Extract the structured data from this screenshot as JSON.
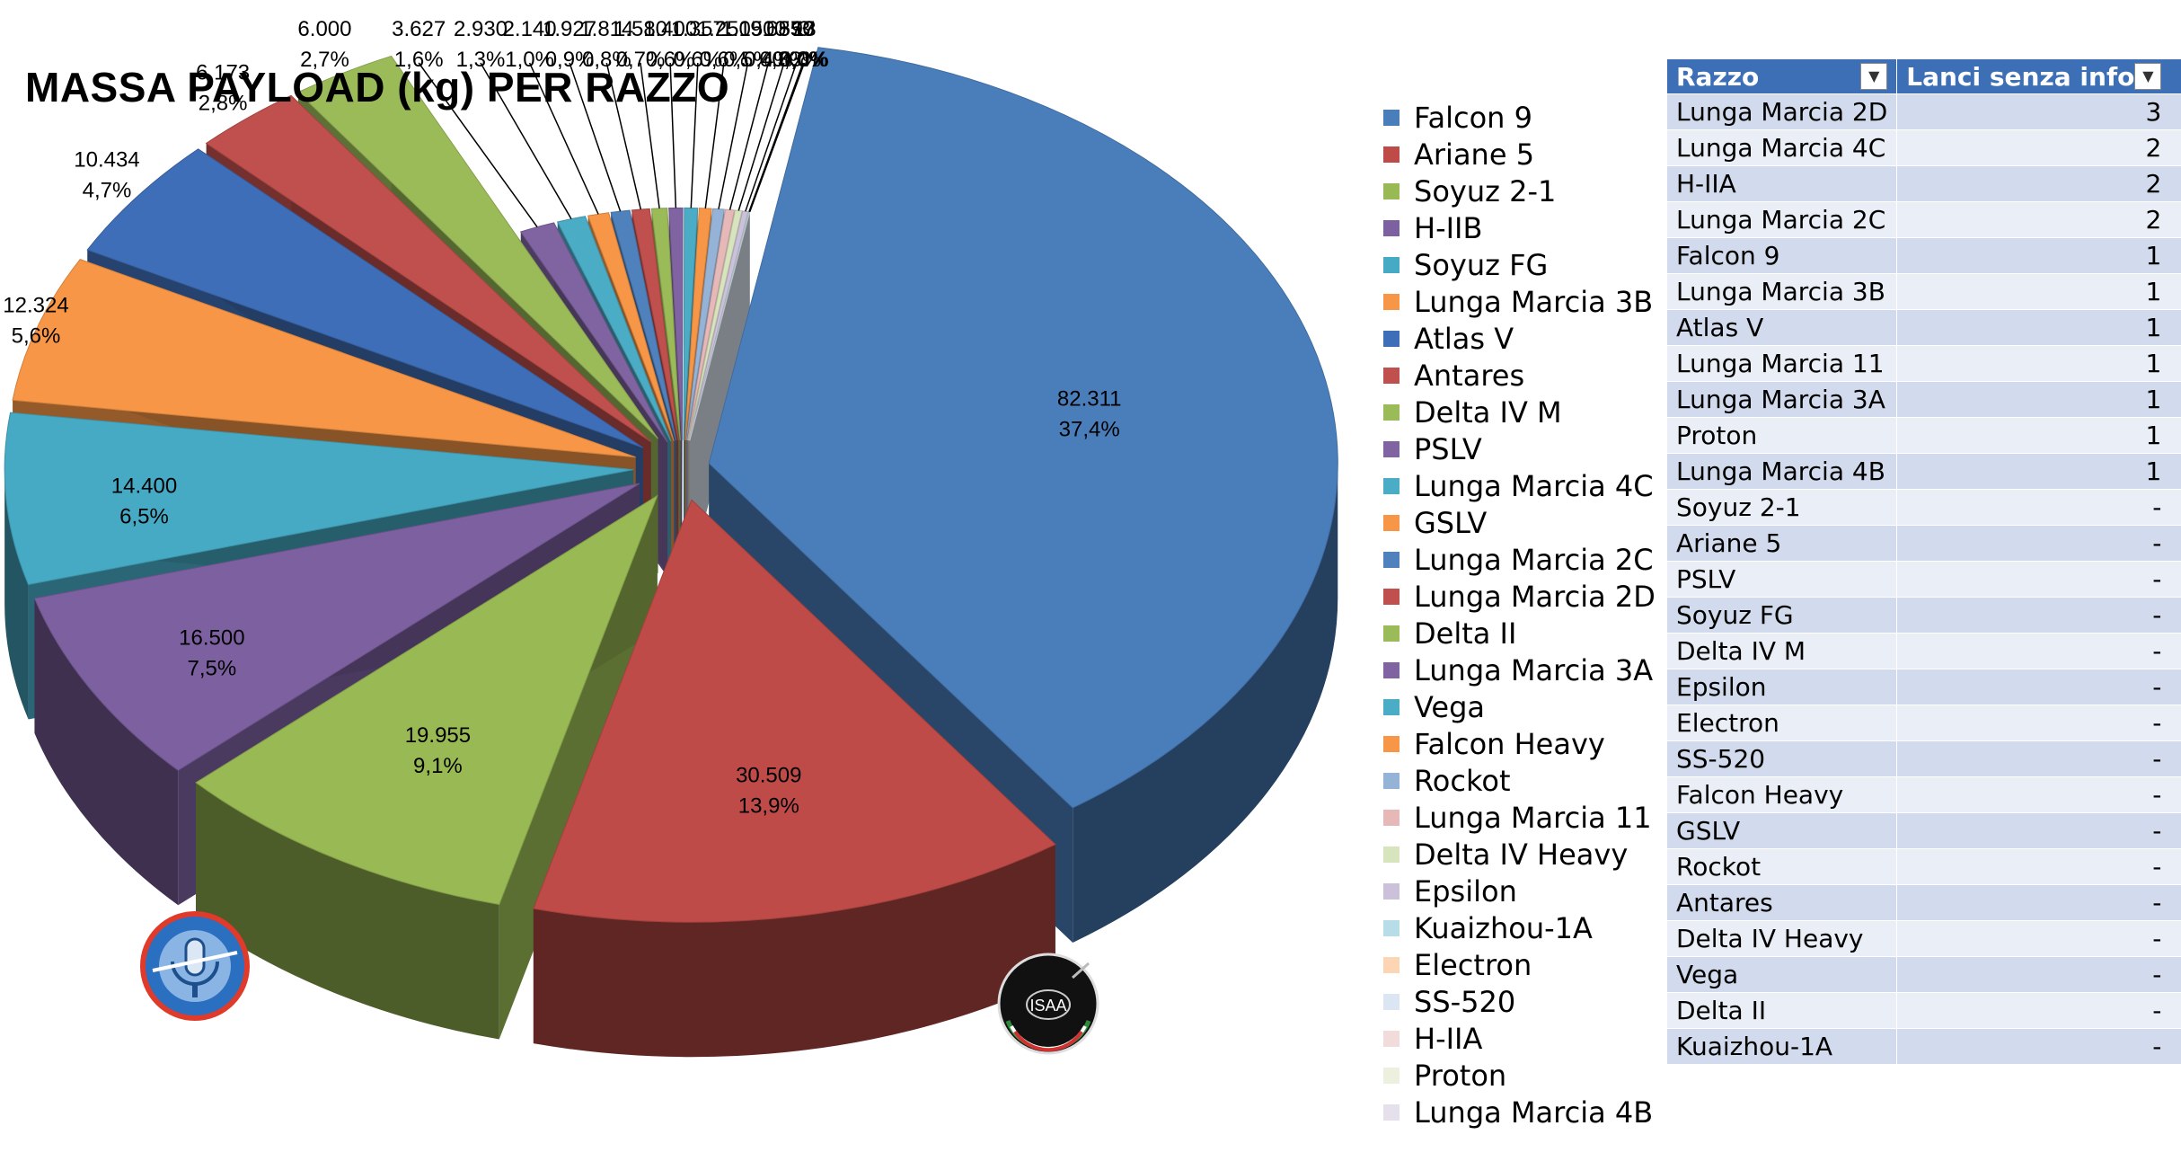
{
  "title": "MASSA PAYLOAD (kg) PER RAZZO",
  "chart_data": {
    "type": "pie",
    "series_name": "Massa payload (kg)",
    "slices": [
      {
        "label": "Falcon 9",
        "value": 82311,
        "value_label": "82.311",
        "pct": "37,4%",
        "color": "#4a7ebb"
      },
      {
        "label": "Ariane 5",
        "value": 30509,
        "value_label": "30.509",
        "pct": "13,9%",
        "color": "#be4b48"
      },
      {
        "label": "Soyuz 2-1",
        "value": 19955,
        "value_label": "19.955",
        "pct": "9,1%",
        "color": "#98b954"
      },
      {
        "label": "H-IIB",
        "value": 16500,
        "value_label": "16.500",
        "pct": "7,5%",
        "color": "#7d60a0"
      },
      {
        "label": "Soyuz FG",
        "value": 14400,
        "value_label": "14.400",
        "pct": "6,5%",
        "color": "#46aac5"
      },
      {
        "label": "Lunga Marcia 3B",
        "value": 12324,
        "value_label": "12.324",
        "pct": "5,6%",
        "color": "#f79646"
      },
      {
        "label": "Atlas V",
        "value": 10434,
        "value_label": "10.434",
        "pct": "4,7%",
        "color": "#3f6eb8"
      },
      {
        "label": "Antares",
        "value": 6173,
        "value_label": "6.173",
        "pct": "2,8%",
        "color": "#c0504d"
      },
      {
        "label": "Delta IV M",
        "value": 6000,
        "value_label": "6.000",
        "pct": "2,7%",
        "color": "#9bbb59"
      },
      {
        "label": "PSLV",
        "value": 3627,
        "value_label": "3.627",
        "pct": "1,6%",
        "color": "#8064a2"
      },
      {
        "label": "Lunga Marcia 4C",
        "value": 2930,
        "value_label": "2.930",
        "pct": "1,3%",
        "color": "#4bacc6"
      },
      {
        "label": "GSLV",
        "value": 2140,
        "value_label": "2.140",
        "pct": "1,0%",
        "color": "#f79646"
      },
      {
        "label": "Lunga Marcia 2C",
        "value": 1927,
        "value_label": "1.927",
        "pct": "0,9%",
        "color": "#4f81bd"
      },
      {
        "label": "Lunga Marcia 2D",
        "value": 1814,
        "value_label": "1.814",
        "pct": "0,8%",
        "color": "#c0504d"
      },
      {
        "label": "Delta II",
        "value": 1580,
        "value_label": "1.580",
        "pct": "0,7%",
        "color": "#9bbb59"
      },
      {
        "label": "Lunga Marcia 3A",
        "value": 1400,
        "value_label": "1.400",
        "pct": "0,6%",
        "color": "#8064a2"
      },
      {
        "label": "Vega",
        "value": 1357,
        "value_label": "1.357",
        "pct": "0,6%",
        "color": "#4bacc6"
      },
      {
        "label": "Falcon Heavy",
        "value": 1250,
        "value_label": "1.250",
        "pct": "0,6%",
        "color": "#f79646"
      },
      {
        "label": "Rockot",
        "value": 1150,
        "value_label": "1.150",
        "pct": "0,5%",
        "color": "#95b3d7"
      },
      {
        "label": "Lunga Marcia 11",
        "value": 910,
        "value_label": "910",
        "pct": "0,4%",
        "color": "#e6b9b8"
      },
      {
        "label": "Delta IV Heavy",
        "value": 685,
        "value_label": "685",
        "pct": "0,3%",
        "color": "#d7e4bd"
      },
      {
        "label": "Epsilon",
        "value": 570,
        "value_label": "570",
        "pct": "0,3%",
        "color": "#ccc1da"
      },
      {
        "label": "Kuaizhou-1A",
        "value": 97,
        "value_label": "97",
        "pct": "0,0%",
        "color": "#b7dee8"
      },
      {
        "label": "Electron",
        "value": 13,
        "value_label": "13",
        "pct": "0,0%",
        "color": "#fcd5b5"
      },
      {
        "label": "SS-520",
        "value": 3,
        "value_label": "3",
        "pct": "0,0%",
        "color": "#dce6f2"
      },
      {
        "label": "H-IIA",
        "value": 0,
        "value_label": "",
        "pct": "",
        "color": "#f2dcdb"
      },
      {
        "label": "Proton",
        "value": 0,
        "value_label": "",
        "pct": "",
        "color": "#ebf1de"
      },
      {
        "label": "Lunga Marcia 4B",
        "value": 0,
        "value_label": "",
        "pct": "",
        "color": "#e6e0ec"
      }
    ]
  },
  "table": {
    "headers": [
      "Razzo",
      "Lanci senza info"
    ],
    "rows": [
      [
        "Lunga Marcia 2D",
        "3"
      ],
      [
        "Lunga Marcia 4C",
        "2"
      ],
      [
        "H-IIA",
        "2"
      ],
      [
        "Lunga Marcia 2C",
        "2"
      ],
      [
        "Falcon 9",
        "1"
      ],
      [
        "Lunga Marcia 3B",
        "1"
      ],
      [
        "Atlas V",
        "1"
      ],
      [
        "Lunga Marcia 11",
        "1"
      ],
      [
        "Lunga Marcia 3A",
        "1"
      ],
      [
        "Proton",
        "1"
      ],
      [
        "Lunga Marcia 4B",
        "1"
      ],
      [
        "Soyuz 2-1",
        "-"
      ],
      [
        "Ariane 5",
        "-"
      ],
      [
        "PSLV",
        "-"
      ],
      [
        "Soyuz FG",
        "-"
      ],
      [
        "Delta IV M",
        "-"
      ],
      [
        "Epsilon",
        "-"
      ],
      [
        "Electron",
        "-"
      ],
      [
        "SS-520",
        "-"
      ],
      [
        "Falcon Heavy",
        "-"
      ],
      [
        "GSLV",
        "-"
      ],
      [
        "Rockot",
        "-"
      ],
      [
        "Antares",
        "-"
      ],
      [
        "Delta IV Heavy",
        "-"
      ],
      [
        "Vega",
        "-"
      ],
      [
        "Delta II",
        "-"
      ],
      [
        "Kuaizhou-1A",
        "-"
      ]
    ]
  },
  "logos": {
    "left_logo": {
      "icon": "microphone-headphones-logo"
    },
    "right_logo": {
      "icon": "isaa-logo",
      "text": "ISAA"
    }
  }
}
